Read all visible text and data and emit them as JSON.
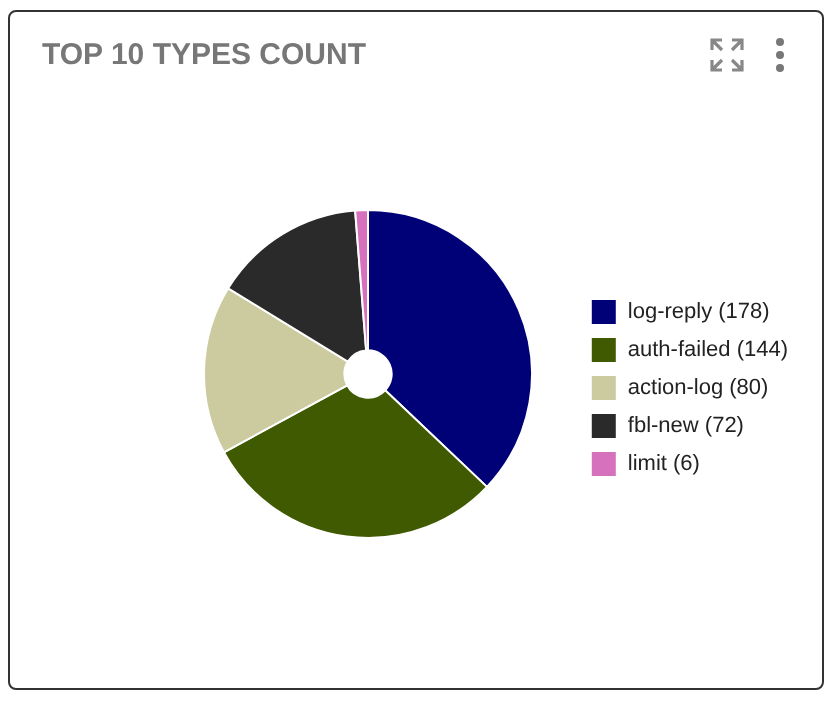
{
  "chart_data": {
    "type": "donut",
    "title": "TOP 10 TYPES COUNT",
    "categories": [
      "log-reply (178)",
      "auth-failed (144)",
      "action-log (80)",
      "fbl-new (72)",
      "limit (6)"
    ],
    "values": [
      178,
      144,
      80,
      72,
      6
    ],
    "colors": [
      "#000077",
      "#3f5a00",
      "#cccba0",
      "#2a2a2a",
      "#d672bd"
    ],
    "legend": "right"
  }
}
